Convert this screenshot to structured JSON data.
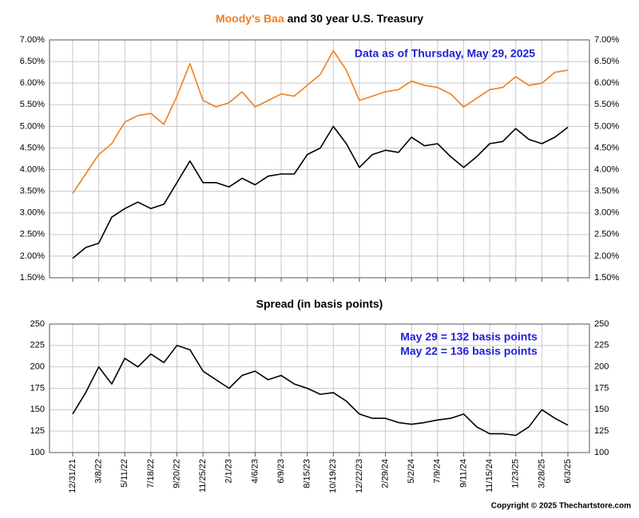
{
  "chart_data": [
    {
      "type": "line",
      "title": [
        "Moody's Baa",
        "and 30 year U.S. Treasury"
      ],
      "annotation": "Data as of Thursday, May 29, 2025",
      "ylim": [
        1.5,
        7
      ],
      "yticks": [
        {
          "value": 1.5,
          "label": "1.50%"
        },
        {
          "value": 2,
          "label": "2.00%"
        },
        {
          "value": 2.5,
          "label": "2.50%"
        },
        {
          "value": 3,
          "label": "3.00%"
        },
        {
          "value": 3.5,
          "label": "3.50%"
        },
        {
          "value": 4,
          "label": "4.00%"
        },
        {
          "value": 4.5,
          "label": "4.50%"
        },
        {
          "value": 5,
          "label": "5.00%"
        },
        {
          "value": 5.5,
          "label": "5.50%"
        },
        {
          "value": 6,
          "label": "6.00%"
        },
        {
          "value": 6.5,
          "label": "6.50%"
        },
        {
          "value": 7,
          "label": "7.00%"
        }
      ],
      "grid": true,
      "series": [
        {
          "color": "#f07f1f",
          "values": [
            3.45,
            3.9,
            4.35,
            4.6,
            5.1,
            5.25,
            5.3,
            5.05,
            5.7,
            6.45,
            5.6,
            5.45,
            5.55,
            5.8,
            5.45,
            5.6,
            5.75,
            5.7,
            5.95,
            6.2,
            6.75,
            6.3,
            5.6,
            5.7,
            5.8,
            5.85,
            6.05,
            5.95,
            5.9,
            5.75,
            5.45,
            5.65,
            5.85,
            5.9,
            6.15,
            5.95,
            6.0,
            6.25,
            6.3
          ]
        },
        {
          "color": "#000000",
          "values": [
            1.95,
            2.2,
            2.3,
            2.9,
            3.1,
            3.25,
            3.1,
            3.2,
            3.7,
            4.2,
            3.7,
            3.7,
            3.6,
            3.8,
            3.65,
            3.85,
            3.9,
            3.9,
            4.35,
            4.5,
            5.0,
            4.6,
            4.05,
            4.35,
            4.45,
            4.4,
            4.75,
            4.55,
            4.6,
            4.3,
            4.05,
            4.3,
            4.6,
            4.65,
            4.95,
            4.7,
            4.6,
            4.75,
            4.98
          ]
        }
      ]
    },
    {
      "type": "line",
      "title": "Spread (in basis points)",
      "annotations": [
        "May 29 = 132 basis points",
        "May 22 = 136 basis points"
      ],
      "categories": [
        "12/31/21",
        null,
        "3/8/22",
        null,
        "5/11/22",
        null,
        "7/18/22",
        null,
        "9/20/22",
        null,
        "11/25/22",
        null,
        "2/1/23",
        null,
        "4/6/23",
        null,
        "6/9/23",
        null,
        "8/15/23",
        null,
        "10/19/23",
        null,
        "12/22/23",
        null,
        "2/29/24",
        null,
        "5/2/24",
        null,
        "7/9/24",
        null,
        "9/11/24",
        null,
        "11/15/24",
        null,
        "1/23/25",
        null,
        "3/28/25",
        null,
        "6/3/25"
      ],
      "ylim": [
        100,
        250
      ],
      "yticks": [
        100,
        125,
        150,
        175,
        200,
        225,
        250
      ],
      "grid": true,
      "series": [
        {
          "color": "#000000",
          "values": [
            145,
            170,
            200,
            180,
            210,
            200,
            215,
            205,
            225,
            220,
            195,
            185,
            175,
            190,
            195,
            185,
            190,
            180,
            175,
            168,
            170,
            160,
            145,
            140,
            140,
            135,
            133,
            135,
            138,
            140,
            145,
            130,
            122,
            122,
            120,
            130,
            150,
            140,
            132
          ]
        }
      ],
      "footer": "Copyright © 2025 Thechartstore.com"
    }
  ]
}
